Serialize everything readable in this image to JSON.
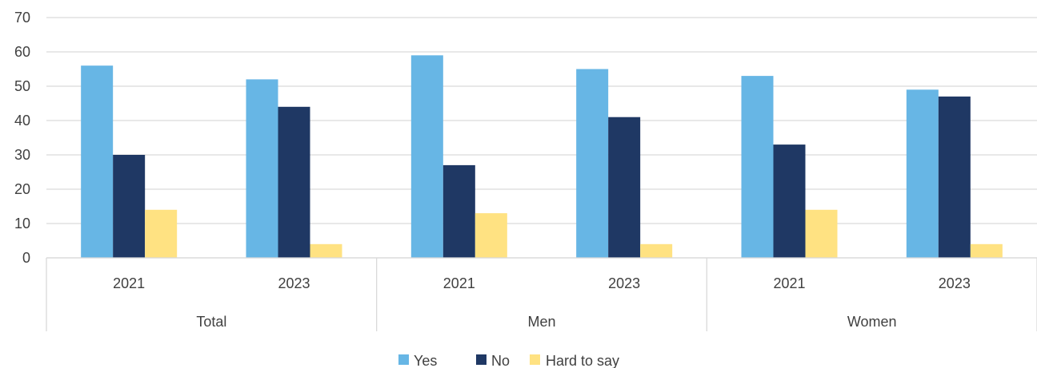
{
  "chart_data": {
    "type": "bar",
    "groups": [
      "Total",
      "Men",
      "Women"
    ],
    "categories": [
      "2021",
      "2023",
      "2021",
      "2023",
      "2021",
      "2023"
    ],
    "series": [
      {
        "name": "Yes",
        "color": "#67b6e5",
        "values": [
          56,
          52,
          59,
          55,
          53,
          49
        ]
      },
      {
        "name": "No",
        "color": "#1f3864",
        "values": [
          30,
          44,
          27,
          41,
          33,
          47
        ]
      },
      {
        "name": "Hard to say",
        "color": "#ffe282",
        "values": [
          14,
          4,
          13,
          4,
          14,
          4
        ]
      }
    ],
    "ylim": [
      0,
      70
    ],
    "yticks": [
      0,
      10,
      20,
      30,
      40,
      50,
      60,
      70
    ],
    "grid": true,
    "legend": "bottom-center"
  }
}
